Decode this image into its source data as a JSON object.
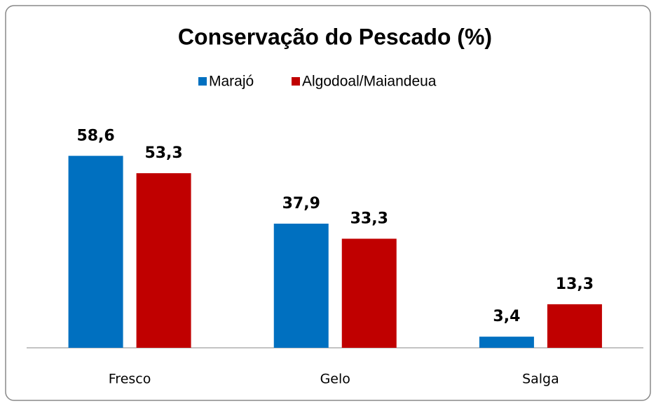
{
  "chart_data": {
    "type": "bar",
    "title": "Conservação do Pescado (%)",
    "categories": [
      "Fresco",
      "Gelo",
      "Salga"
    ],
    "series": [
      {
        "name": "Marajó",
        "color": "#0070c0",
        "values": [
          58.6,
          37.9,
          3.4
        ],
        "value_labels": [
          "58,6",
          "37,9",
          "3,4"
        ]
      },
      {
        "name": "Algodoal/Maiandeua",
        "color": "#c00000",
        "values": [
          53.3,
          33.3,
          13.3
        ],
        "value_labels": [
          "53,3",
          "33,3",
          "13,3"
        ]
      }
    ],
    "ylim": [
      0,
      70
    ],
    "legend": "top"
  }
}
